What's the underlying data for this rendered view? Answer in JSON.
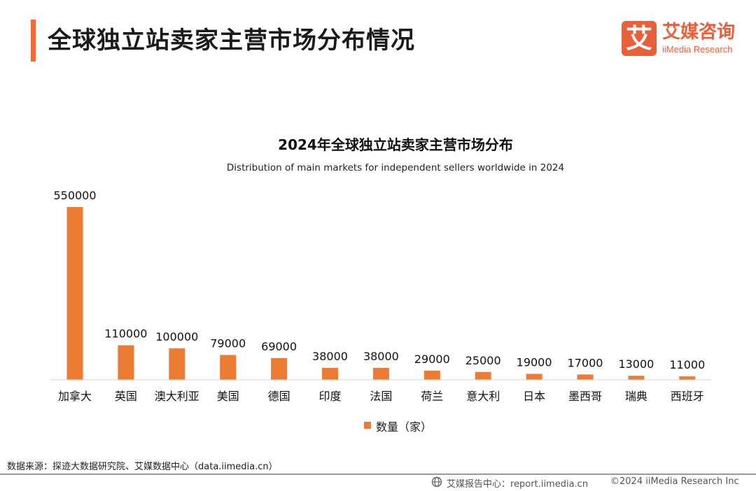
{
  "header": {
    "title": "全球独立站卖家主营市场分布情况"
  },
  "logo": {
    "mark": "艾",
    "cn": "艾媒咨询",
    "en": "iiMedia Research"
  },
  "chart_data": {
    "type": "bar",
    "title": "2024年全球独立站卖家主营市场分布",
    "subtitle": "Distribution of main markets for independent sellers worldwide in 2024",
    "categories": [
      "加拿大",
      "英国",
      "澳大利亚",
      "美国",
      "德国",
      "印度",
      "法国",
      "荷兰",
      "意大利",
      "日本",
      "墨西哥",
      "瑞典",
      "西班牙"
    ],
    "series": [
      {
        "name": "数量（家）",
        "values": [
          550000,
          110000,
          100000,
          79000,
          69000,
          38000,
          38000,
          29000,
          25000,
          19000,
          17000,
          13000,
          11000
        ],
        "color": "#ec7c33"
      }
    ],
    "ylim": [
      0,
      550000
    ],
    "xlabel": "",
    "ylabel": "",
    "legend": "bottom-center",
    "grid": false
  },
  "footer": {
    "source": "数据来源：探迹大数据研究院、艾媒数据中心（data.iimedia.cn）",
    "report": "艾媒报告中心：report.iimedia.cn",
    "copyright": "©2024  iiMedia Research  Inc"
  }
}
